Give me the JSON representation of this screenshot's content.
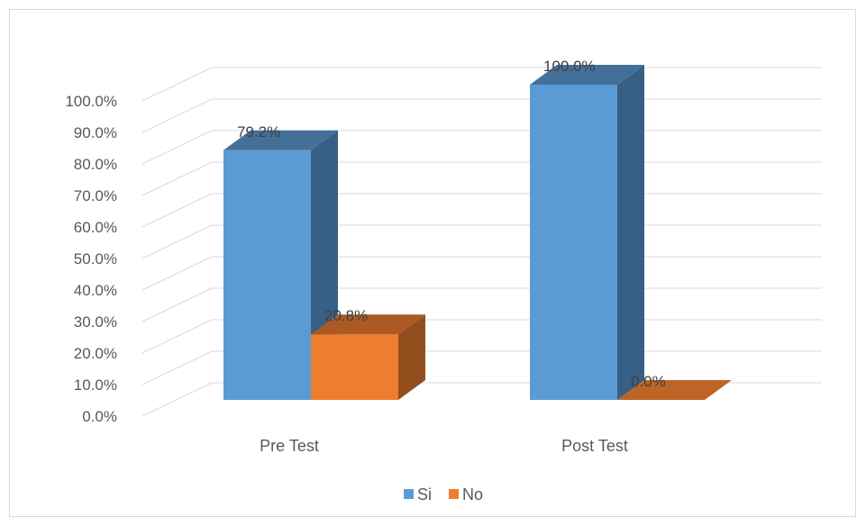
{
  "chart_data": {
    "type": "bar",
    "categories": [
      "Pre Test",
      "Post Test"
    ],
    "series": [
      {
        "name": "Si",
        "values": [
          79.2,
          100.0
        ],
        "color": "#5b9bd5"
      },
      {
        "name": "No",
        "values": [
          20.8,
          0.0
        ],
        "color": "#ed7d31"
      }
    ],
    "data_labels": [
      [
        "79.2%",
        "100.0%"
      ],
      [
        "20.8%",
        "0.0%"
      ]
    ],
    "ylim": [
      0,
      100
    ],
    "y_ticks": [
      "0.0%",
      "10.0%",
      "20.0%",
      "30.0%",
      "40.0%",
      "50.0%",
      "60.0%",
      "70.0%",
      "80.0%",
      "90.0%",
      "100.0%"
    ],
    "title": "",
    "xlabel": "",
    "ylabel": "",
    "grid": true,
    "legend_position": "bottom",
    "style": "3d-clustered-column"
  }
}
